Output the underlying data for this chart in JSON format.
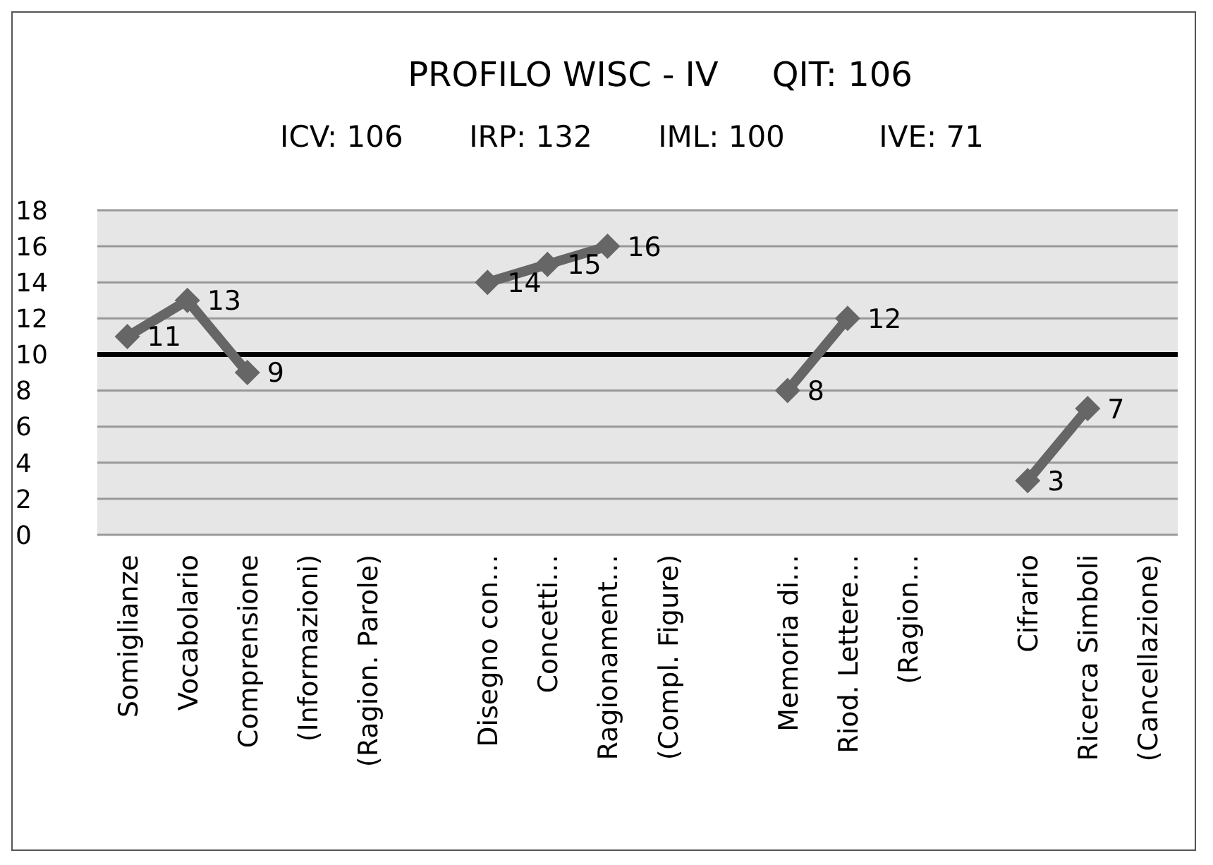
{
  "chart_data": {
    "type": "line",
    "title": "PROFILO WISC - IV     QIT: 106",
    "subtitle": "ICV: 106       IRP: 132       IML: 100          IVE: 71",
    "categories": [
      "Somiglianze",
      "Vocabolario",
      "Comprensione",
      "(Informazioni)",
      "(Ragion. Parole)",
      null,
      "Disegno con…",
      "Concetti…",
      "Ragionament…",
      "(Compl. Figure)",
      null,
      "Memoria di…",
      "Riod. Lettere…",
      "(Ragion…",
      null,
      "Cifrario",
      "Ricerca Simboli",
      "(Cancellazione)"
    ],
    "series": [
      {
        "color": "#666666",
        "values": [
          11,
          13,
          9,
          null,
          null,
          null,
          14,
          15,
          16,
          null,
          null,
          8,
          12,
          null,
          null,
          3,
          7,
          null
        ]
      }
    ],
    "ylim": [
      0,
      18
    ],
    "yticks": [
      0,
      2,
      4,
      6,
      8,
      10,
      12,
      14,
      16,
      18
    ],
    "grid": "y",
    "marker": "diamond",
    "line_style": "solid",
    "data_labels": true,
    "ref_lines": [
      {
        "axis": "y",
        "value": 10,
        "color": "#000000"
      }
    ]
  }
}
